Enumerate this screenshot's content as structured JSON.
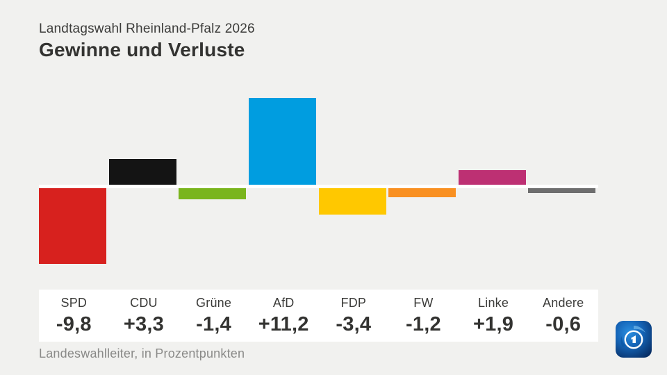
{
  "header": {
    "subtitle": "Landtagswahl Rheinland-Pfalz 2026",
    "title": "Gewinne und Verluste"
  },
  "footer": {
    "source": "Landeswahlleiter, in Prozentpunkten"
  },
  "icons": {
    "brand": "ard-das-erste-logo"
  },
  "colors": {
    "background": "#f1f1ef",
    "zero_line": "#ffffff",
    "label_panel": "#ffffff",
    "text_dark": "#333331",
    "text_muted": "#8a8a88"
  },
  "chart_data": {
    "type": "bar",
    "title": "Gewinne und Verluste",
    "subtitle": "Landtagswahl Rheinland-Pfalz 2026",
    "unit": "Prozentpunkte",
    "source": "Landeswahlleiter",
    "categories": [
      "SPD",
      "CDU",
      "Grüne",
      "AfD",
      "FDP",
      "FW",
      "Linke",
      "Andere"
    ],
    "values": [
      -9.8,
      3.3,
      -1.4,
      11.2,
      -3.4,
      -1.2,
      1.9,
      -0.6
    ],
    "value_labels": [
      "-9,8",
      "+3,3",
      "-1,4",
      "+11,2",
      "-3,4",
      "-1,2",
      "+1,9",
      "-0,6"
    ],
    "colors": [
      "#d7211e",
      "#141414",
      "#7ab51d",
      "#009de0",
      "#ffc800",
      "#f99021",
      "#bd3073",
      "#6e6e6e"
    ],
    "baseline": 0,
    "ylim": [
      -10.5,
      11.5
    ],
    "grid": false,
    "legend": false
  }
}
